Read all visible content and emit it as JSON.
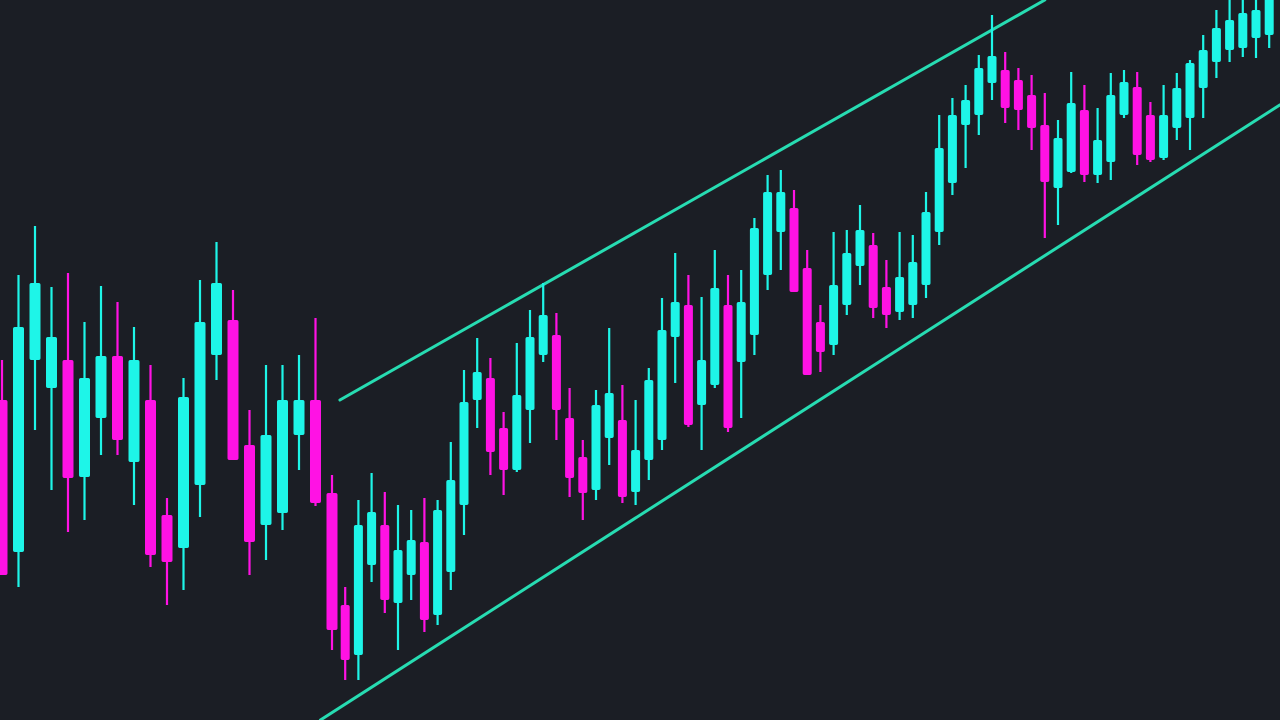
{
  "chart_data": {
    "type": "candlestick",
    "title": "",
    "xlabel": "",
    "ylabel": "",
    "ylim": [
      0,
      72
    ],
    "grid": false,
    "legend": "none",
    "colors": {
      "background": "#1b1e25",
      "up": "#1ef5e8",
      "down": "#ff12e4",
      "trendline": "#27dcb2"
    },
    "ohlc_fields": [
      "open",
      "high",
      "low",
      "close"
    ],
    "candles": [
      [
        32.0,
        36.0,
        14.5,
        14.5
      ],
      [
        16.8,
        44.5,
        13.3,
        39.3
      ],
      [
        36.0,
        49.4,
        29.0,
        43.7
      ],
      [
        33.2,
        43.3,
        23.0,
        38.3
      ],
      [
        36.0,
        44.7,
        18.8,
        24.2
      ],
      [
        24.3,
        39.8,
        20.0,
        34.2
      ],
      [
        30.2,
        43.4,
        26.5,
        36.4
      ],
      [
        36.4,
        41.8,
        26.5,
        28.0
      ],
      [
        25.8,
        39.3,
        21.5,
        36.0
      ],
      [
        32.0,
        35.5,
        15.3,
        16.5
      ],
      [
        20.5,
        22.2,
        11.5,
        15.8
      ],
      [
        17.2,
        34.2,
        13.0,
        32.3
      ],
      [
        23.5,
        44.0,
        20.3,
        39.8
      ],
      [
        36.5,
        47.8,
        34.0,
        43.7
      ],
      [
        40.0,
        43.0,
        26.0,
        26.0
      ],
      [
        27.5,
        31.0,
        14.5,
        17.8
      ],
      [
        19.5,
        35.5,
        16.0,
        28.5
      ],
      [
        20.7,
        35.5,
        19.0,
        32.0
      ],
      [
        28.5,
        36.5,
        25.0,
        32.0
      ],
      [
        32.0,
        40.2,
        21.4,
        21.7
      ],
      [
        22.7,
        24.5,
        7.0,
        9.0
      ],
      [
        11.5,
        13.3,
        4.0,
        6.0
      ],
      [
        6.5,
        22.0,
        4.0,
        19.5
      ],
      [
        15.5,
        24.7,
        13.8,
        20.8
      ],
      [
        19.5,
        22.8,
        10.7,
        12.0
      ],
      [
        11.7,
        21.5,
        7.0,
        17.0
      ],
      [
        14.5,
        21.0,
        12.0,
        18.0
      ],
      [
        17.8,
        22.2,
        8.8,
        10.0
      ],
      [
        10.5,
        22.0,
        9.5,
        21.0
      ],
      [
        14.8,
        27.8,
        13.0,
        24.0
      ],
      [
        21.5,
        35.0,
        18.5,
        31.8
      ],
      [
        32.0,
        38.2,
        29.2,
        34.8
      ],
      [
        34.2,
        36.2,
        24.5,
        26.8
      ],
      [
        29.2,
        30.8,
        22.5,
        25.0
      ],
      [
        25.0,
        37.7,
        24.8,
        32.5
      ],
      [
        31.0,
        41.0,
        27.7,
        38.3
      ],
      [
        36.5,
        43.7,
        35.8,
        40.5
      ],
      [
        38.5,
        40.7,
        28.0,
        31.0
      ],
      [
        30.2,
        33.2,
        22.3,
        24.2
      ],
      [
        26.3,
        28.0,
        20.0,
        22.7
      ],
      [
        23.0,
        33.0,
        22.0,
        31.5
      ],
      [
        28.2,
        39.2,
        25.5,
        32.7
      ],
      [
        30.0,
        33.5,
        21.7,
        22.3
      ],
      [
        22.8,
        32.0,
        21.5,
        27.0
      ],
      [
        26.0,
        35.2,
        24.0,
        34.0
      ],
      [
        28.0,
        42.2,
        27.0,
        39.0
      ],
      [
        38.3,
        46.7,
        33.7,
        41.8
      ],
      [
        41.5,
        44.5,
        29.3,
        29.5
      ],
      [
        31.5,
        42.3,
        27.0,
        36.0
      ],
      [
        33.5,
        47.0,
        33.2,
        43.2
      ],
      [
        41.5,
        44.5,
        28.8,
        29.2
      ],
      [
        35.8,
        45.0,
        30.2,
        41.8
      ],
      [
        38.5,
        50.2,
        36.5,
        49.2
      ],
      [
        44.5,
        54.5,
        43.0,
        52.8
      ],
      [
        48.8,
        55.0,
        45.0,
        52.8
      ],
      [
        51.2,
        53.0,
        42.8,
        42.8
      ],
      [
        45.2,
        47.0,
        34.5,
        34.5
      ],
      [
        39.8,
        41.5,
        34.8,
        36.8
      ],
      [
        37.5,
        48.8,
        36.5,
        43.5
      ],
      [
        41.5,
        49.0,
        40.5,
        46.7
      ],
      [
        45.4,
        51.5,
        43.5,
        49.0
      ],
      [
        47.5,
        48.7,
        40.2,
        41.2
      ],
      [
        43.3,
        46.0,
        39.2,
        40.5
      ],
      [
        40.8,
        48.8,
        40.0,
        44.3
      ],
      [
        41.5,
        48.5,
        40.2,
        45.8
      ],
      [
        43.5,
        52.8,
        42.2,
        50.8
      ],
      [
        48.8,
        60.5,
        47.5,
        57.2
      ],
      [
        53.7,
        62.2,
        52.5,
        60.5
      ],
      [
        59.5,
        63.5,
        55.2,
        62.0
      ],
      [
        60.5,
        66.5,
        58.5,
        65.2
      ],
      [
        63.7,
        70.5,
        62.0,
        66.4
      ],
      [
        65.0,
        66.8,
        59.7,
        61.2
      ],
      [
        64.0,
        65.2,
        59.0,
        61.0
      ],
      [
        62.5,
        64.5,
        57.0,
        59.2
      ],
      [
        59.5,
        62.7,
        48.2,
        53.8
      ],
      [
        53.2,
        60.0,
        49.5,
        58.2
      ],
      [
        54.8,
        64.8,
        54.7,
        61.7
      ],
      [
        61.0,
        63.5,
        53.8,
        54.5
      ],
      [
        54.5,
        61.2,
        53.7,
        58.0
      ],
      [
        55.8,
        64.7,
        54.0,
        62.5
      ],
      [
        60.5,
        65.0,
        60.2,
        63.8
      ],
      [
        63.3,
        64.8,
        55.5,
        56.5
      ],
      [
        60.5,
        61.8,
        55.8,
        56.0
      ],
      [
        56.2,
        63.5,
        56.0,
        60.5
      ],
      [
        59.2,
        64.7,
        58.0,
        63.2
      ],
      [
        60.2,
        66.0,
        57.0,
        65.7
      ],
      [
        63.2,
        68.5,
        60.2,
        67.0
      ],
      [
        65.8,
        71.0,
        64.2,
        69.2
      ],
      [
        67.0,
        73.0,
        65.8,
        70.0
      ],
      [
        67.2,
        73.0,
        66.3,
        70.7
      ],
      [
        68.2,
        73.0,
        66.2,
        71.0
      ],
      [
        68.5,
        73.0,
        67.2,
        72.5
      ]
    ],
    "trendlines": [
      {
        "role": "upper-channel",
        "from": {
          "index": 20.6,
          "price": 32.0
        },
        "to": {
          "index": 74.0,
          "price": 72.0
        }
      },
      {
        "role": "lower-channel",
        "from": {
          "index": 19.3,
          "price": 0.0
        },
        "to": {
          "index": 91.8,
          "price": 61.5
        }
      }
    ]
  }
}
